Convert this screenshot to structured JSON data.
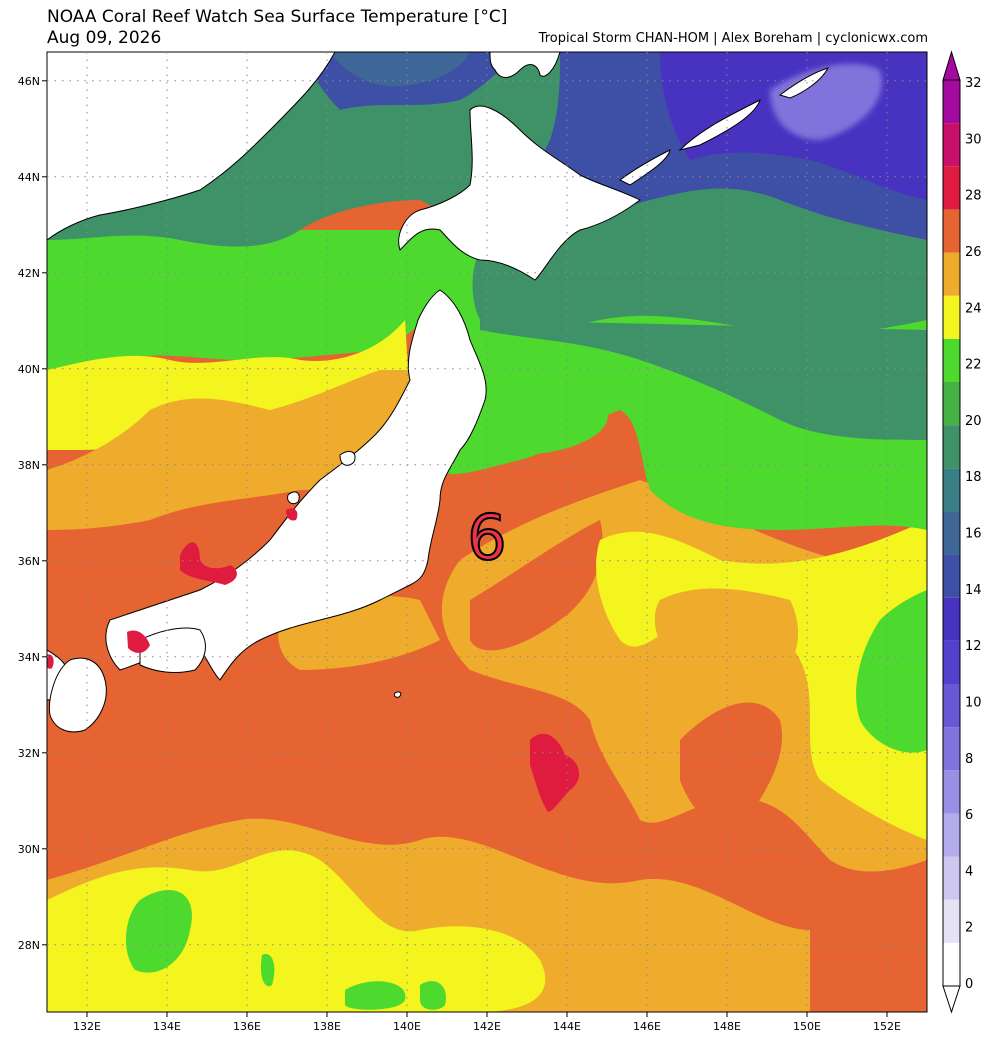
{
  "header": {
    "title": "NOAA Coral Reef Watch Sea Surface Temperature [°C]",
    "date": "Aug 09, 2026",
    "credit": "Tropical Storm CHAN-HOM | Alex Boreham | cyclonicwx.com"
  },
  "map": {
    "lon_range": [
      131,
      153
    ],
    "lat_range": [
      26.6,
      46.6
    ],
    "lon_ticks": [
      "132E",
      "134E",
      "136E",
      "138E",
      "140E",
      "142E",
      "144E",
      "146E",
      "148E",
      "150E",
      "152E"
    ],
    "lat_ticks": [
      "28N",
      "30N",
      "32N",
      "34N",
      "36N",
      "38N",
      "40N",
      "42N",
      "44N",
      "46N"
    ],
    "storm_symbol": "6",
    "storm_position": {
      "lon": 142.0,
      "lat": 36.5
    },
    "colors": {
      "land": "#ffffff",
      "coast": "#000000",
      "storm_fill": "#e8334a",
      "storm_outline": "#000000"
    }
  },
  "colorbar": {
    "labels": [
      "0",
      "2",
      "4",
      "6",
      "8",
      "10",
      "12",
      "14",
      "16",
      "18",
      "20",
      "22",
      "24",
      "26",
      "28",
      "30",
      "32"
    ],
    "colors": [
      "#ffffff",
      "#e6e2f6",
      "#cec7f0",
      "#b4abea",
      "#9a8fe4",
      "#8273dc",
      "#6a57d6",
      "#5440cc",
      "#4832c0",
      "#3e4fa6",
      "#3e6798",
      "#3a7f86",
      "#3f9268",
      "#46b246",
      "#4ed92f",
      "#f4f41f",
      "#eeab2c",
      "#e66432",
      "#df1c40",
      "#c8106a",
      "#a50aa0"
    ]
  }
}
